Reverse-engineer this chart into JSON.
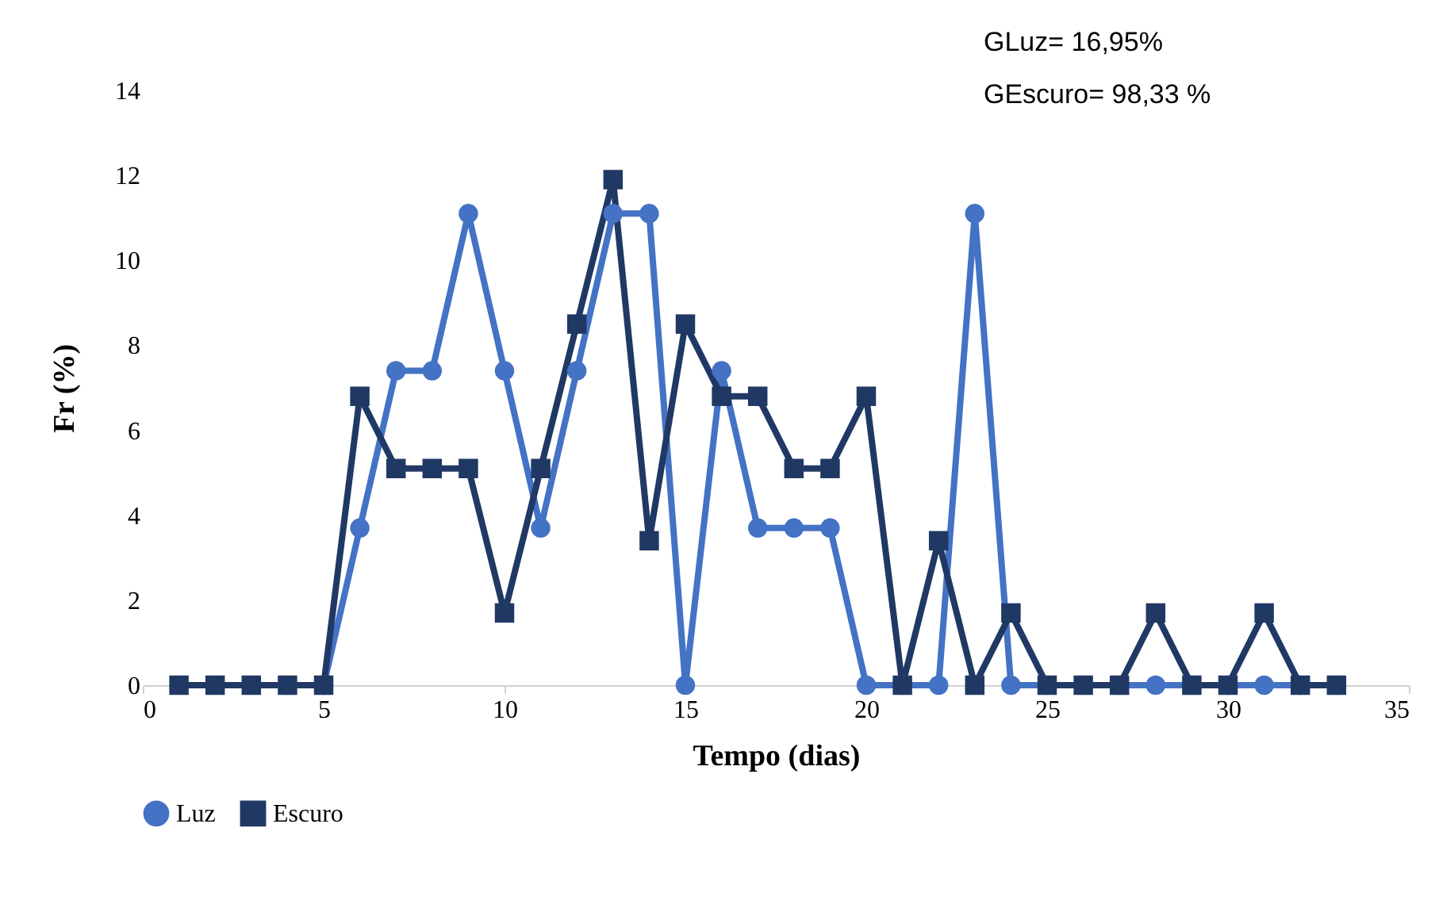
{
  "chart_data": {
    "type": "line",
    "xlabel": "Tempo (dias)",
    "ylabel": "Fr (%)",
    "x": [
      1,
      2,
      3,
      4,
      5,
      6,
      7,
      8,
      9,
      10,
      11,
      12,
      13,
      14,
      15,
      16,
      17,
      18,
      19,
      20,
      21,
      22,
      23,
      24,
      25,
      26,
      27,
      28,
      29,
      30,
      31,
      32,
      33
    ],
    "series": [
      {
        "name": "Luz",
        "color": "#4472c4",
        "marker": "circle",
        "values": [
          null,
          null,
          null,
          0,
          0,
          3.7,
          7.4,
          7.4,
          11.1,
          7.4,
          3.7,
          7.4,
          11.1,
          11.1,
          0,
          7.4,
          3.7,
          3.7,
          3.7,
          0,
          0,
          0,
          11.1,
          0,
          0,
          0,
          0,
          0,
          0,
          0,
          0,
          0,
          0
        ]
      },
      {
        "name": "Escuro",
        "color": "#203864",
        "marker": "square",
        "values": [
          0,
          0,
          0,
          0,
          0,
          6.8,
          5.1,
          5.1,
          5.1,
          1.7,
          5.1,
          8.5,
          11.9,
          3.4,
          8.5,
          6.8,
          6.8,
          5.1,
          5.1,
          6.8,
          0,
          3.4,
          0,
          1.7,
          0,
          0,
          0,
          1.7,
          0,
          0,
          1.7,
          0,
          0
        ]
      }
    ],
    "xlim": [
      0,
      35
    ],
    "xticks": [
      0,
      5,
      10,
      15,
      20,
      25,
      30,
      35
    ],
    "ylim": [
      0,
      14
    ],
    "yticks": [
      0,
      2,
      4,
      6,
      8,
      10,
      12,
      14
    ],
    "grid": false,
    "legend": "bottom",
    "line_style": "solid",
    "annotations": [
      "GLuz= 16,95%",
      "GEscuro= 98,33 %"
    ]
  }
}
